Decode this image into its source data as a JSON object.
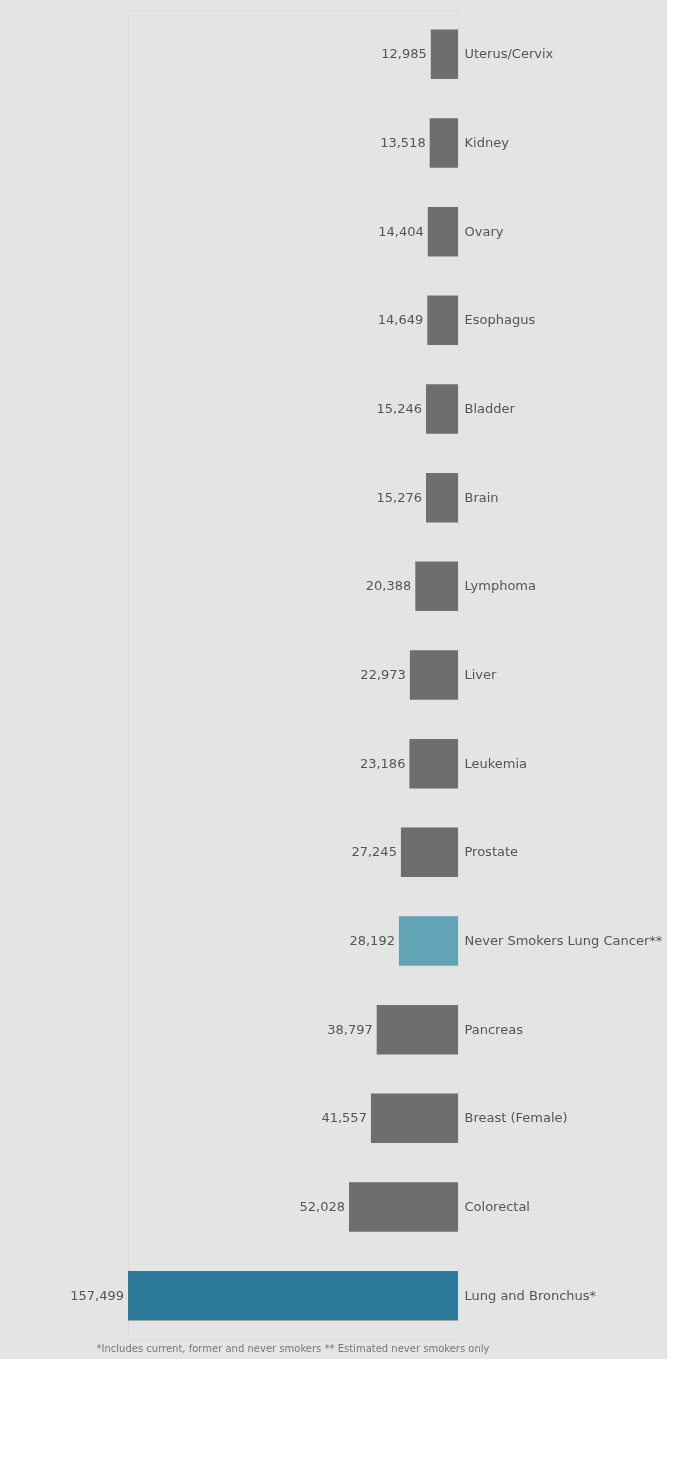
{
  "chart_data": {
    "type": "bar",
    "orientation": "horizontal",
    "value_labels": [
      "12,985",
      "13,518",
      "14,404",
      "14,649",
      "15,246",
      "15,276",
      "20,388",
      "22,973",
      "23,186",
      "27,245",
      "28,192",
      "38,797",
      "41,557",
      "52,028",
      "157,499"
    ],
    "categories": [
      "Uterus/Cervix",
      "Kidney",
      "Ovary",
      "Esophagus",
      "Bladder",
      "Brain",
      "Lymphoma",
      "Liver",
      "Leukemia",
      "Prostate",
      "Never Smokers Lung Cancer**",
      "Pancreas",
      "Breast (Female)",
      "Colorectal",
      "Lung and Bronchus*"
    ],
    "values": [
      12985,
      13518,
      14404,
      14649,
      15246,
      15276,
      20388,
      22973,
      23186,
      27245,
      28192,
      38797,
      41557,
      52028,
      157499
    ],
    "colors": [
      "#6e6e6e",
      "#6e6e6e",
      "#6e6e6e",
      "#6e6e6e",
      "#6e6e6e",
      "#6e6e6e",
      "#6e6e6e",
      "#6e6e6e",
      "#6e6e6e",
      "#6e6e6e",
      "#62a3b5",
      "#6e6e6e",
      "#6e6e6e",
      "#6e6e6e",
      "#2e7a9a"
    ],
    "annotations": [
      "*Includes current, former and never smokers ** Estimated never smokers only"
    ]
  }
}
